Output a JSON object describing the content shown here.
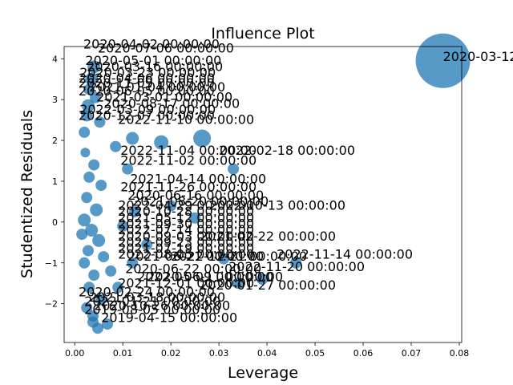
{
  "chart_data": {
    "type": "scatter",
    "title": "Influence Plot",
    "xlabel": "Leverage",
    "ylabel": "Studentized Residuals",
    "xlim": [
      -0.0022,
      0.0805
    ],
    "ylim": [
      -2.95,
      4.3
    ],
    "xticks": [
      0.0,
      0.01,
      0.02,
      0.03,
      0.04,
      0.05,
      0.06,
      0.07,
      0.08
    ],
    "xtick_labels": [
      "0.00",
      "0.01",
      "0.02",
      "0.03",
      "0.04",
      "0.05",
      "0.06",
      "0.07",
      "0.08"
    ],
    "yticks": [
      -2,
      -1,
      0,
      1,
      2,
      3,
      4
    ],
    "ytick_labels": [
      "−2",
      "−1",
      "0",
      "1",
      "2",
      "3",
      "4"
    ],
    "grid": false,
    "marker_color": "#1f77b4",
    "points": [
      {
        "x": 0.0766,
        "y": 3.95,
        "size": 34
      },
      {
        "x": 0.0265,
        "y": 2.05,
        "size": 11
      },
      {
        "x": 0.018,
        "y": 1.95,
        "size": 9
      },
      {
        "x": 0.012,
        "y": 2.05,
        "size": 8
      },
      {
        "x": 0.0085,
        "y": 1.85,
        "size": 7
      },
      {
        "x": 0.0052,
        "y": 2.45,
        "size": 7
      },
      {
        "x": 0.0043,
        "y": 3.05,
        "size": 7
      },
      {
        "x": 0.0035,
        "y": 3.5,
        "size": 8
      },
      {
        "x": 0.004,
        "y": 3.8,
        "size": 8
      },
      {
        "x": 0.003,
        "y": 3.25,
        "size": 7
      },
      {
        "x": 0.0028,
        "y": 2.85,
        "size": 8
      },
      {
        "x": 0.0025,
        "y": 2.6,
        "size": 7
      },
      {
        "x": 0.002,
        "y": 2.2,
        "size": 7
      },
      {
        "x": 0.0022,
        "y": 1.7,
        "size": 6
      },
      {
        "x": 0.004,
        "y": 1.4,
        "size": 7
      },
      {
        "x": 0.003,
        "y": 1.1,
        "size": 7
      },
      {
        "x": 0.0055,
        "y": 0.9,
        "size": 7
      },
      {
        "x": 0.0025,
        "y": 0.6,
        "size": 7
      },
      {
        "x": 0.0045,
        "y": 0.3,
        "size": 8
      },
      {
        "x": 0.002,
        "y": 0.05,
        "size": 8
      },
      {
        "x": 0.0035,
        "y": -0.2,
        "size": 8
      },
      {
        "x": 0.0015,
        "y": -0.3,
        "size": 7
      },
      {
        "x": 0.005,
        "y": -0.45,
        "size": 8
      },
      {
        "x": 0.0028,
        "y": -0.7,
        "size": 7
      },
      {
        "x": 0.006,
        "y": -0.85,
        "size": 7
      },
      {
        "x": 0.002,
        "y": -1.0,
        "size": 7
      },
      {
        "x": 0.004,
        "y": -1.3,
        "size": 7
      },
      {
        "x": 0.0075,
        "y": -1.2,
        "size": 7
      },
      {
        "x": 0.003,
        "y": -1.6,
        "size": 7
      },
      {
        "x": 0.009,
        "y": -1.6,
        "size": 7
      },
      {
        "x": 0.0055,
        "y": -1.9,
        "size": 7
      },
      {
        "x": 0.0038,
        "y": -2.3,
        "size": 7
      },
      {
        "x": 0.0025,
        "y": -2.1,
        "size": 7
      },
      {
        "x": 0.0038,
        "y": -2.45,
        "size": 7
      },
      {
        "x": 0.0048,
        "y": -2.6,
        "size": 7
      },
      {
        "x": 0.0068,
        "y": -2.5,
        "size": 7
      },
      {
        "x": 0.01,
        "y": -0.1,
        "size": 7
      },
      {
        "x": 0.0125,
        "y": 0.25,
        "size": 7
      },
      {
        "x": 0.015,
        "y": -0.55,
        "size": 7
      },
      {
        "x": 0.02,
        "y": 0.4,
        "size": 7
      },
      {
        "x": 0.012,
        "y": -1.0,
        "size": 7
      },
      {
        "x": 0.034,
        "y": -1.5,
        "size": 7
      },
      {
        "x": 0.039,
        "y": -1.4,
        "size": 7
      },
      {
        "x": 0.046,
        "y": -1.0,
        "size": 7
      },
      {
        "x": 0.033,
        "y": 1.3,
        "size": 7
      },
      {
        "x": 0.031,
        "y": -0.9,
        "size": 7
      },
      {
        "x": 0.025,
        "y": 0.1,
        "size": 7
      },
      {
        "x": 0.011,
        "y": 1.3,
        "size": 7
      }
    ],
    "annotations": [
      {
        "text": "2020-03-12 00:00:00",
        "x": 0.0766,
        "y": 3.95
      },
      {
        "text": "2020-04-02 00:00:00",
        "x": 0.0018,
        "y": 4.25
      },
      {
        "text": "2020-07-06 00:00:00",
        "x": 0.0048,
        "y": 4.15
      },
      {
        "text": "2020-05-01 00:00:00",
        "x": 0.0022,
        "y": 3.85
      },
      {
        "text": "2020-03-16 00:00:00",
        "x": 0.0025,
        "y": 3.7
      },
      {
        "text": "2020-03-23 00:00:00",
        "x": 0.001,
        "y": 3.55
      },
      {
        "text": "2020-04-06 00:00:00",
        "x": 0.0008,
        "y": 3.42
      },
      {
        "text": "2020-11-09 00:00:00",
        "x": 0.0008,
        "y": 3.3
      },
      {
        "text": "2021-01-04 00:00:00",
        "x": 0.003,
        "y": 3.2
      },
      {
        "text": "2020-06-05 00:00:00",
        "x": 0.0008,
        "y": 3.1
      },
      {
        "text": "2021-03-01 00:00:00",
        "x": 0.0045,
        "y": 2.95
      },
      {
        "text": "2020-08-17 00:00:00",
        "x": 0.006,
        "y": 2.8
      },
      {
        "text": "2022-03-09 00:00:00",
        "x": 0.001,
        "y": 2.65
      },
      {
        "text": "2020-12-07 00:00:00",
        "x": 0.0008,
        "y": 2.5
      },
      {
        "text": "2022-11-10 00:00:00",
        "x": 0.009,
        "y": 2.4
      },
      {
        "text": "2022-11-04 00:00:00",
        "x": 0.0095,
        "y": 1.65
      },
      {
        "text": "2022-02-18 00:00:00",
        "x": 0.03,
        "y": 1.65
      },
      {
        "text": "2022-11-02 00:00:00",
        "x": 0.0095,
        "y": 1.4
      },
      {
        "text": "2021-04-14 00:00:00",
        "x": 0.0115,
        "y": 0.95
      },
      {
        "text": "2021-11-26 00:00:00",
        "x": 0.0095,
        "y": 0.75
      },
      {
        "text": "2020-06-16 00:00:00",
        "x": 0.011,
        "y": 0.55
      },
      {
        "text": "2021-08-20 00:00:00",
        "x": 0.012,
        "y": 0.4
      },
      {
        "text": "2022-04-29 00:00:00",
        "x": 0.009,
        "y": 0.3
      },
      {
        "text": "2022-10-13 00:00:00",
        "x": 0.028,
        "y": 0.3
      },
      {
        "text": "2020-10-28 00:00:00",
        "x": 0.009,
        "y": 0.15
      },
      {
        "text": "2021-05-12 00:00:00",
        "x": 0.009,
        "y": 0.0
      },
      {
        "text": "2021-09-30 00:00:00",
        "x": 0.009,
        "y": -0.15
      },
      {
        "text": "2022-07-14 00:00:00",
        "x": 0.009,
        "y": -0.3
      },
      {
        "text": "2020-09-03 00:00:00",
        "x": 0.009,
        "y": -0.45
      },
      {
        "text": "2021-02-22 00:00:00",
        "x": 0.026,
        "y": -0.45
      },
      {
        "text": "2022-09-23 00:00:00",
        "x": 0.009,
        "y": -0.6
      },
      {
        "text": "2021-07-19 00:00:00",
        "x": 0.009,
        "y": -0.75
      },
      {
        "text": "2022-08-05 00:00:00",
        "x": 0.009,
        "y": -0.9
      },
      {
        "text": "2022-11-14 00:00:00",
        "x": 0.042,
        "y": -0.9
      },
      {
        "text": "2021-06-21 00:00:00",
        "x": 0.011,
        "y": -0.95
      },
      {
        "text": "2022-12-21 00:00:00",
        "x": 0.02,
        "y": -0.95
      },
      {
        "text": "2022-11-20 00:00:00",
        "x": 0.032,
        "y": -1.2
      },
      {
        "text": "2020-06-22 00:00:00",
        "x": 0.0105,
        "y": -1.25
      },
      {
        "text": "2020-06-11 00:00:00",
        "x": 0.015,
        "y": -1.45
      },
      {
        "text": "2022-05-09 00:00:00",
        "x": 0.013,
        "y": -1.45
      },
      {
        "text": "2020-01-27 00:00:00",
        "x": 0.026,
        "y": -1.65
      },
      {
        "text": "2021-12-01 00:00:00",
        "x": 0.009,
        "y": -1.6
      },
      {
        "text": "2020-02-24 00:00:00",
        "x": 0.0008,
        "y": -1.82
      },
      {
        "text": "2021-03-18 00:00:00",
        "x": 0.003,
        "y": -1.95
      },
      {
        "text": "2022-01-21 00:00:00",
        "x": 0.002,
        "y": -2.05
      },
      {
        "text": "2019-08-05 00:00:00",
        "x": 0.002,
        "y": -2.25
      },
      {
        "text": "2020-10-26 00:00:00",
        "x": 0.004,
        "y": -2.15
      },
      {
        "text": "2019-04-15 00:00:00",
        "x": 0.0055,
        "y": -2.45
      }
    ]
  }
}
